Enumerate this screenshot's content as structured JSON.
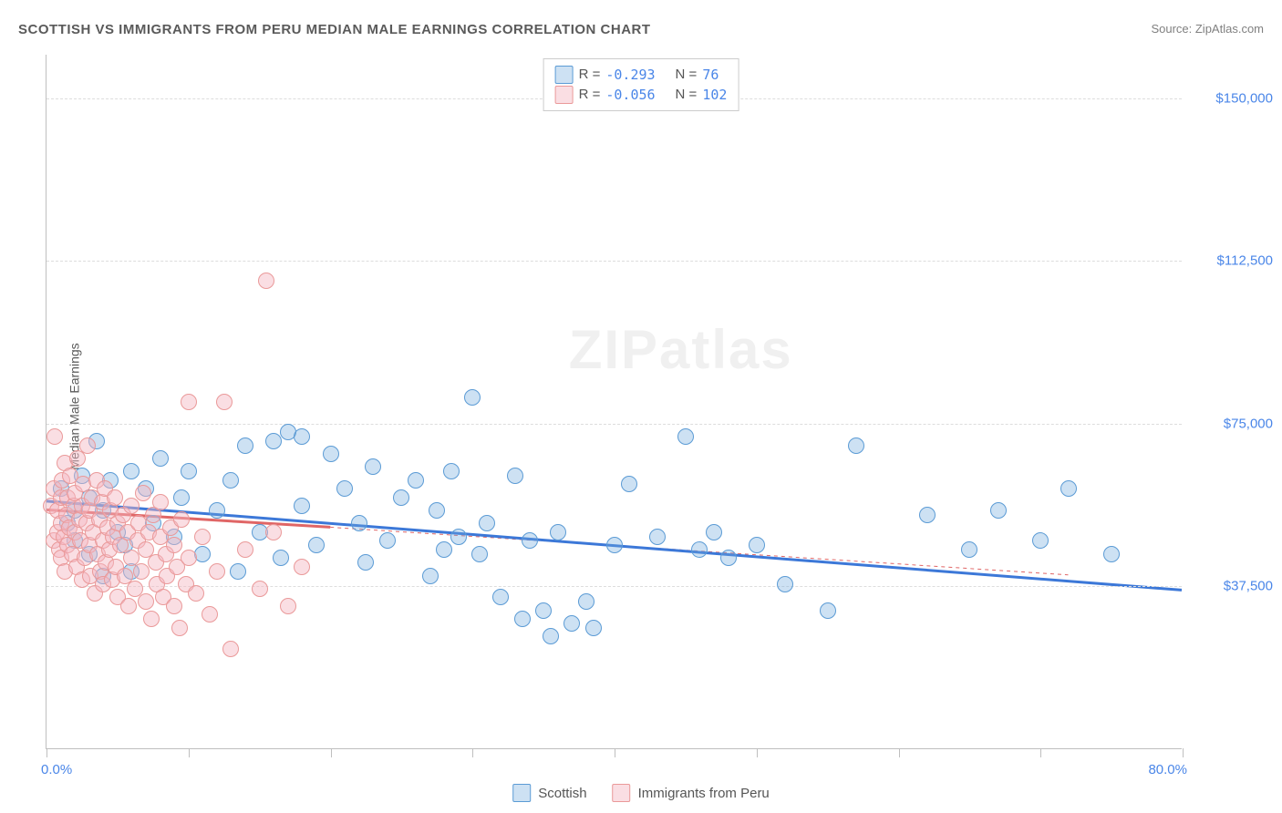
{
  "title": "SCOTTISH VS IMMIGRANTS FROM PERU MEDIAN MALE EARNINGS CORRELATION CHART",
  "source": "Source: ZipAtlas.com",
  "ylabel": "Median Male Earnings",
  "watermark": "ZIPatlas",
  "chart": {
    "type": "scatter",
    "xlim": [
      0,
      80
    ],
    "ylim": [
      0,
      160000
    ],
    "x_start_label": "0.0%",
    "x_end_label": "80.0%",
    "y_ticks": [
      37500,
      75000,
      112500,
      150000
    ],
    "y_tick_labels": [
      "$37,500",
      "$75,000",
      "$112,500",
      "$150,000"
    ],
    "x_minor_ticks": [
      0,
      10,
      20,
      30,
      40,
      50,
      60,
      70,
      80
    ],
    "grid_color": "#dddddd",
    "axis_color": "#bfbfbf",
    "background": "#ffffff",
    "marker_radius": 8,
    "marker_opacity": 0.5,
    "series": [
      {
        "name": "Scottish",
        "color": "#6fa8dc",
        "fill": "rgba(111,168,220,0.35)",
        "stroke": "#5b9bd5",
        "R": "-0.293",
        "N": "76",
        "trend": {
          "x1": 0,
          "y1": 57000,
          "x2": 80,
          "y2": 36500,
          "width": 3,
          "dash": null
        },
        "points": [
          [
            1,
            60000
          ],
          [
            1.5,
            52000
          ],
          [
            2,
            55000
          ],
          [
            2,
            48000
          ],
          [
            2.5,
            63000
          ],
          [
            3,
            58000
          ],
          [
            3,
            45000
          ],
          [
            3.5,
            71000
          ],
          [
            4,
            55000
          ],
          [
            4,
            40000
          ],
          [
            4.5,
            62000
          ],
          [
            5,
            50000
          ],
          [
            5.5,
            47000
          ],
          [
            6,
            64000
          ],
          [
            6,
            41000
          ],
          [
            7,
            60000
          ],
          [
            7.5,
            52000
          ],
          [
            8,
            67000
          ],
          [
            9,
            49000
          ],
          [
            9.5,
            58000
          ],
          [
            10,
            64000
          ],
          [
            11,
            45000
          ],
          [
            12,
            55000
          ],
          [
            13,
            62000
          ],
          [
            13.5,
            41000
          ],
          [
            14,
            70000
          ],
          [
            15,
            50000
          ],
          [
            16,
            71000
          ],
          [
            16.5,
            44000
          ],
          [
            17,
            73000
          ],
          [
            18,
            56000
          ],
          [
            18,
            72000
          ],
          [
            19,
            47000
          ],
          [
            20,
            68000
          ],
          [
            21,
            60000
          ],
          [
            22,
            52000
          ],
          [
            22.5,
            43000
          ],
          [
            23,
            65000
          ],
          [
            24,
            48000
          ],
          [
            25,
            58000
          ],
          [
            26,
            62000
          ],
          [
            27,
            40000
          ],
          [
            27.5,
            55000
          ],
          [
            28,
            46000
          ],
          [
            28.5,
            64000
          ],
          [
            29,
            49000
          ],
          [
            30,
            81000
          ],
          [
            30.5,
            45000
          ],
          [
            31,
            52000
          ],
          [
            32,
            35000
          ],
          [
            33,
            63000
          ],
          [
            33.5,
            30000
          ],
          [
            34,
            48000
          ],
          [
            35,
            32000
          ],
          [
            35.5,
            26000
          ],
          [
            36,
            50000
          ],
          [
            37,
            29000
          ],
          [
            38,
            34000
          ],
          [
            38.5,
            28000
          ],
          [
            40,
            47000
          ],
          [
            41,
            61000
          ],
          [
            43,
            49000
          ],
          [
            45,
            72000
          ],
          [
            46,
            46000
          ],
          [
            47,
            50000
          ],
          [
            48,
            44000
          ],
          [
            50,
            47000
          ],
          [
            52,
            38000
          ],
          [
            55,
            32000
          ],
          [
            57,
            70000
          ],
          [
            62,
            54000
          ],
          [
            65,
            46000
          ],
          [
            67,
            55000
          ],
          [
            70,
            48000
          ],
          [
            72,
            60000
          ],
          [
            75,
            45000
          ]
        ]
      },
      {
        "name": "Immigrants from Peru",
        "color": "#f4b6c2",
        "fill": "rgba(244,182,194,0.45)",
        "stroke": "#ea9999",
        "R": "-0.056",
        "N": "102",
        "trend_solid": {
          "x1": 0,
          "y1": 55000,
          "x2": 20,
          "y2": 51000,
          "width": 3
        },
        "trend_dash": {
          "x1": 20,
          "y1": 51000,
          "x2": 72,
          "y2": 40000,
          "width": 1
        },
        "points": [
          [
            0.3,
            56000
          ],
          [
            0.5,
            60000
          ],
          [
            0.5,
            48000
          ],
          [
            0.6,
            72000
          ],
          [
            0.8,
            55000
          ],
          [
            0.8,
            50000
          ],
          [
            0.9,
            46000
          ],
          [
            1,
            58000
          ],
          [
            1,
            52000
          ],
          [
            1,
            44000
          ],
          [
            1.1,
            62000
          ],
          [
            1.2,
            49000
          ],
          [
            1.3,
            66000
          ],
          [
            1.3,
            41000
          ],
          [
            1.4,
            54000
          ],
          [
            1.5,
            58000
          ],
          [
            1.5,
            47000
          ],
          [
            1.6,
            51000
          ],
          [
            1.7,
            63000
          ],
          [
            1.8,
            45000
          ],
          [
            1.9,
            56000
          ],
          [
            2,
            59000
          ],
          [
            2,
            50000
          ],
          [
            2.1,
            42000
          ],
          [
            2.2,
            67000
          ],
          [
            2.3,
            53000
          ],
          [
            2.4,
            48000
          ],
          [
            2.5,
            56000
          ],
          [
            2.5,
            39000
          ],
          [
            2.6,
            61000
          ],
          [
            2.7,
            44000
          ],
          [
            2.8,
            52000
          ],
          [
            2.9,
            70000
          ],
          [
            3,
            47000
          ],
          [
            3,
            55000
          ],
          [
            3.1,
            40000
          ],
          [
            3.2,
            58000
          ],
          [
            3.3,
            50000
          ],
          [
            3.4,
            36000
          ],
          [
            3.5,
            62000
          ],
          [
            3.6,
            45000
          ],
          [
            3.7,
            53000
          ],
          [
            3.8,
            41000
          ],
          [
            3.9,
            57000
          ],
          [
            4,
            48000
          ],
          [
            4,
            38000
          ],
          [
            4.1,
            60000
          ],
          [
            4.2,
            43000
          ],
          [
            4.3,
            51000
          ],
          [
            4.4,
            46000
          ],
          [
            4.5,
            55000
          ],
          [
            4.6,
            39000
          ],
          [
            4.7,
            49000
          ],
          [
            4.8,
            58000
          ],
          [
            4.9,
            42000
          ],
          [
            5,
            52000
          ],
          [
            5,
            35000
          ],
          [
            5.2,
            47000
          ],
          [
            5.4,
            54000
          ],
          [
            5.5,
            40000
          ],
          [
            5.7,
            50000
          ],
          [
            5.8,
            33000
          ],
          [
            6,
            56000
          ],
          [
            6,
            44000
          ],
          [
            6.2,
            37000
          ],
          [
            6.4,
            48000
          ],
          [
            6.5,
            52000
          ],
          [
            6.7,
            41000
          ],
          [
            6.8,
            59000
          ],
          [
            7,
            34000
          ],
          [
            7,
            46000
          ],
          [
            7.2,
            50000
          ],
          [
            7.4,
            30000
          ],
          [
            7.5,
            54000
          ],
          [
            7.7,
            43000
          ],
          [
            7.8,
            38000
          ],
          [
            8,
            49000
          ],
          [
            8,
            57000
          ],
          [
            8.2,
            35000
          ],
          [
            8.4,
            45000
          ],
          [
            8.5,
            40000
          ],
          [
            8.7,
            51000
          ],
          [
            9,
            33000
          ],
          [
            9,
            47000
          ],
          [
            9.2,
            42000
          ],
          [
            9.4,
            28000
          ],
          [
            9.5,
            53000
          ],
          [
            9.8,
            38000
          ],
          [
            10,
            44000
          ],
          [
            10,
            80000
          ],
          [
            10.5,
            36000
          ],
          [
            11,
            49000
          ],
          [
            11.5,
            31000
          ],
          [
            12,
            41000
          ],
          [
            12.5,
            80000
          ],
          [
            13,
            23000
          ],
          [
            14,
            46000
          ],
          [
            15,
            37000
          ],
          [
            15.5,
            108000
          ],
          [
            16,
            50000
          ],
          [
            17,
            33000
          ],
          [
            18,
            42000
          ]
        ]
      }
    ]
  },
  "legend_top": {
    "r_label": "R =",
    "n_label": "N ="
  },
  "legend_bottom": [
    {
      "label": "Scottish"
    },
    {
      "label": "Immigrants from Peru"
    }
  ]
}
